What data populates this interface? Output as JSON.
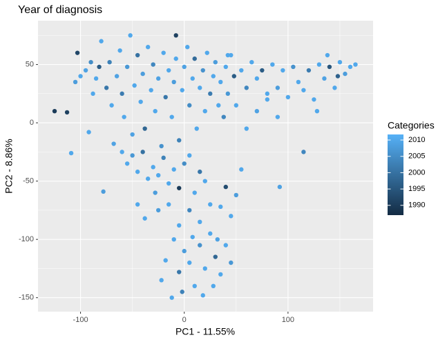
{
  "chart_data": {
    "type": "scatter",
    "title": "Year of diagnosis",
    "x_label": "PC1 - 11.55%",
    "y_label": "PC2 - 8.86%",
    "xlim": [
      -141,
      182
    ],
    "ylim": [
      -162,
      87.6
    ],
    "xticks": [
      -100,
      0,
      100
    ],
    "yticks": [
      -150,
      -100,
      -50,
      0,
      50
    ],
    "grid": true,
    "legend_title": "Categories",
    "color_lim": [
      1987,
      2011.7
    ],
    "color_ticks": [
      1990,
      1995,
      2000,
      2005,
      2010
    ],
    "low_color": "#132B43",
    "high_color": "#56B1F7",
    "x": [
      -125,
      -113,
      -109,
      -78,
      115,
      92,
      -8,
      -103,
      -95,
      -90,
      -85,
      -80,
      -75,
      -72,
      -70,
      -65,
      -62,
      -60,
      -58,
      -55,
      -52,
      -50,
      -48,
      -45,
      -42,
      -40,
      -38,
      -35,
      -32,
      -30,
      -28,
      -25,
      -22,
      -20,
      -18,
      -15,
      -12,
      -10,
      -8,
      -5,
      -2,
      0,
      3,
      5,
      8,
      10,
      12,
      15,
      18,
      20,
      22,
      25,
      28,
      30,
      33,
      35,
      38,
      40,
      42,
      45,
      48,
      50,
      -88,
      -82,
      -92,
      -68,
      -60,
      -55,
      -50,
      -45,
      -40,
      -35,
      -30,
      -28,
      -25,
      -20,
      -15,
      -10,
      -5,
      0,
      5,
      10,
      15,
      20,
      -45,
      -38,
      -25,
      -15,
      -5,
      5,
      15,
      25,
      -10,
      0,
      -18,
      -22,
      -12,
      -5,
      5,
      10,
      15,
      20,
      25,
      30,
      35,
      40,
      45,
      28,
      18,
      -2,
      8,
      32,
      55,
      60,
      65,
      70,
      75,
      80,
      85,
      90,
      95,
      100,
      105,
      110,
      115,
      120,
      125,
      130,
      135,
      140,
      145,
      150,
      155,
      160,
      165,
      138,
      148,
      128,
      90,
      80,
      70,
      60,
      55,
      50,
      45,
      40,
      35,
      42,
      -100,
      -105
    ],
    "y": [
      10,
      9,
      -26,
      -59,
      -25,
      -55,
      75,
      60,
      45,
      52,
      38,
      70,
      30,
      52,
      15,
      40,
      62,
      25,
      5,
      48,
      75,
      -10,
      32,
      58,
      18,
      42,
      -5,
      65,
      28,
      50,
      10,
      38,
      -20,
      60,
      22,
      45,
      5,
      35,
      55,
      -15,
      28,
      48,
      65,
      15,
      38,
      55,
      -5,
      30,
      45,
      10,
      60,
      25,
      40,
      52,
      15,
      35,
      5,
      48,
      25,
      58,
      40,
      15,
      25,
      48,
      -8,
      -18,
      -25,
      -35,
      -28,
      -42,
      -25,
      -48,
      -38,
      -60,
      -45,
      -30,
      -52,
      -40,
      -56,
      -35,
      -28,
      -60,
      -42,
      -50,
      -70,
      -82,
      -75,
      -70,
      -88,
      -75,
      -85,
      -70,
      -100,
      -110,
      -118,
      -135,
      -150,
      -128,
      -120,
      -140,
      -105,
      -125,
      -95,
      -115,
      -130,
      -105,
      -120,
      -140,
      -148,
      -145,
      -98,
      -100,
      45,
      30,
      52,
      38,
      45,
      25,
      50,
      30,
      45,
      22,
      48,
      35,
      28,
      45,
      20,
      50,
      38,
      48,
      30,
      52,
      42,
      48,
      50,
      58,
      40,
      10,
      5,
      20,
      10,
      -5,
      -40,
      -62,
      -80,
      -55,
      -72,
      58,
      40,
      35
    ],
    "color_values": [
      1990,
      1991,
      2010,
      2008,
      2004,
      2009,
      1991,
      1992,
      2009,
      2005,
      2010,
      2010,
      2001,
      2003,
      2010,
      2009,
      2010,
      2002,
      2010,
      2007,
      2010,
      2009,
      2010,
      2000,
      2010,
      2008,
      1998,
      2010,
      2010,
      2004,
      2010,
      2009,
      2006,
      2010,
      2001,
      2010,
      2010,
      2008,
      2010,
      2003,
      2010,
      2009,
      2010,
      2005,
      2010,
      1999,
      2010,
      2010,
      2006,
      2010,
      2010,
      2002,
      2010,
      2008,
      2010,
      2010,
      2004,
      2010,
      2007,
      2010,
      1996,
      2010,
      2010,
      1996,
      2010,
      2009,
      2010,
      2010,
      2007,
      2010,
      2000,
      2010,
      2010,
      2008,
      2010,
      2003,
      2010,
      2010,
      1990,
      2005,
      2010,
      2010,
      2001,
      2010,
      2010,
      2010,
      2008,
      2010,
      2010,
      2004,
      2010,
      2010,
      2010,
      2008,
      2010,
      2010,
      2010,
      2001,
      2010,
      2010,
      2006,
      2010,
      2010,
      1998,
      2010,
      2010,
      2007,
      2010,
      2010,
      2003,
      2010,
      2009,
      2010,
      2004,
      2010,
      2010,
      1996,
      2010,
      2010,
      2008,
      2010,
      2010,
      2006,
      2010,
      2010,
      2002,
      2010,
      2010,
      2009,
      1995,
      2010,
      2010,
      2008,
      2010,
      2010,
      2010,
      1997,
      2010,
      2010,
      2010,
      2009,
      2010,
      2010,
      2008,
      2010,
      1993,
      2010,
      2010,
      2010,
      2008
    ]
  }
}
